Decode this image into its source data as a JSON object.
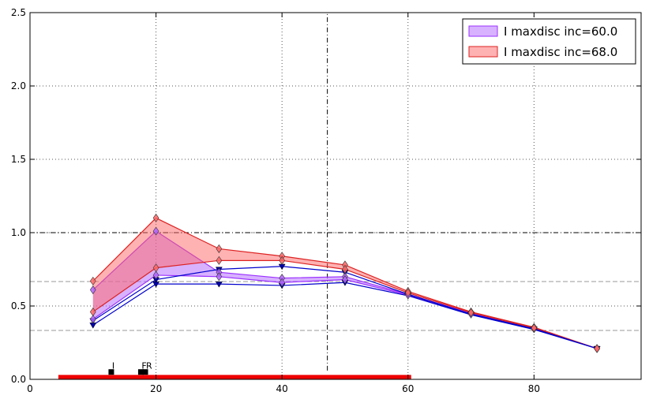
{
  "chart_data": {
    "type": "line",
    "xlim": [
      0,
      97
    ],
    "ylim": [
      0,
      2.5
    ],
    "x_ticks": [
      0,
      20,
      40,
      60,
      80
    ],
    "y_ticks": [
      0.0,
      0.5,
      1.0,
      1.5,
      2.0,
      2.5
    ],
    "x_tick_labels": [
      "0",
      "20",
      "40",
      "60",
      "80"
    ],
    "y_tick_labels": [
      "0.0",
      "0.5",
      "1.0",
      "1.5",
      "2.0",
      "2.5"
    ],
    "grid": true,
    "legend_position": "top-right",
    "bands": [
      {
        "name": "I maxdisc inc=60.0",
        "color": "#b266ff",
        "edge_color": "#9b30ff",
        "x": [
          10,
          20,
          30,
          40,
          50,
          60,
          70,
          80,
          90
        ],
        "upper": [
          0.61,
          1.01,
          0.73,
          0.69,
          0.7,
          0.58,
          0.45,
          0.35,
          0.21
        ],
        "lower": [
          0.41,
          0.71,
          0.7,
          0.66,
          0.68,
          0.575,
          0.445,
          0.345,
          0.21
        ]
      },
      {
        "name": "I maxdisc inc=68.0",
        "color": "#ff6666",
        "edge_color": "#dd2222",
        "x": [
          10,
          20,
          30,
          40,
          50,
          60,
          70,
          80,
          90
        ],
        "upper": [
          0.67,
          1.1,
          0.89,
          0.84,
          0.78,
          0.6,
          0.46,
          0.355,
          0.21
        ],
        "lower": [
          0.46,
          0.76,
          0.81,
          0.81,
          0.75,
          0.59,
          0.455,
          0.35,
          0.21
        ]
      }
    ],
    "blue_lines": [
      {
        "color": "#0000cc",
        "x": [
          10,
          20,
          30,
          40,
          50,
          60,
          70,
          80,
          90
        ],
        "y": [
          0.4,
          0.68,
          0.75,
          0.77,
          0.73,
          0.58,
          0.445,
          0.345,
          0.21
        ]
      },
      {
        "color": "#0000cc",
        "x": [
          10,
          20,
          30,
          40,
          50,
          60,
          70,
          80,
          90
        ],
        "y": [
          0.37,
          0.65,
          0.65,
          0.64,
          0.66,
          0.57,
          0.44,
          0.34,
          0.21
        ]
      }
    ],
    "reference_lines": [
      {
        "orientation": "horizontal",
        "value": 1.0,
        "style": "dashdot",
        "color": "#000000"
      },
      {
        "orientation": "horizontal",
        "value": 0.667,
        "style": "dashed",
        "color": "#999999"
      },
      {
        "orientation": "horizontal",
        "value": 0.333,
        "style": "dashed",
        "color": "#999999"
      },
      {
        "orientation": "vertical",
        "value": 47.2,
        "style": "dashdot",
        "color": "#000000",
        "y_range": [
          0.06,
          2.5
        ]
      }
    ],
    "range_bar": {
      "x_start": 4.5,
      "x_end": 60.5,
      "y": 0.014,
      "color": "#ee0000"
    },
    "point_markers": [
      {
        "label": "I",
        "x": 12.9,
        "y": 0.05
      },
      {
        "label": "F",
        "x": 17.6,
        "y": 0.05
      },
      {
        "label": "R",
        "x": 18.3,
        "y": 0.05
      }
    ]
  }
}
